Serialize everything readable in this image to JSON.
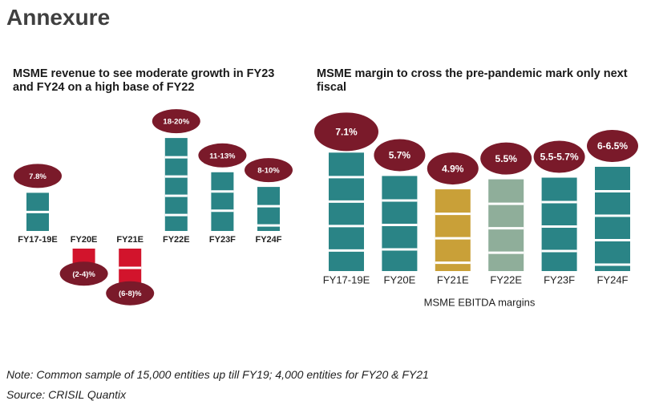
{
  "title": "Annexure",
  "chart_data": [
    {
      "type": "bar",
      "title": "MSME revenue to see moderate growth in FY23 and FY24 on a high base of FY22",
      "categories": [
        "FY17-19E",
        "FY20E",
        "FY21E",
        "FY22E",
        "FY23F",
        "FY24F"
      ],
      "values": [
        7.8,
        -3,
        -7,
        19,
        12,
        9
      ],
      "value_labels": [
        "7.8%",
        "(2-4)%",
        "(6-8)%",
        "18-20%",
        "11-13%",
        "8-10%"
      ],
      "colors": [
        "#2a8486",
        "#d2142c",
        "#d2142c",
        "#2a8486",
        "#2a8486",
        "#2a8486"
      ],
      "label_color": "#7a1a2a"
    },
    {
      "type": "bar",
      "title": "MSME margin to cross the pre-pandemic mark only next fiscal",
      "categories": [
        "FY17-19E",
        "FY20E",
        "FY21E",
        "FY22E",
        "FY23F",
        "FY24F"
      ],
      "values": [
        7.1,
        5.7,
        4.9,
        5.5,
        5.6,
        6.25
      ],
      "value_labels": [
        "7.1%",
        "5.7%",
        "4.9%",
        "5.5%",
        "5.5-5.7%",
        "6-6.5%"
      ],
      "colors": [
        "#2a8486",
        "#2a8486",
        "#c9a038",
        "#8fae9a",
        "#2a8486",
        "#2a8486"
      ],
      "label_color": "#7a1a2a",
      "x_label": "MSME EBITDA margins"
    }
  ],
  "note": "Note: Common sample of 15,000 entities up till FY19; 4,000 entities for FY20 & FY21",
  "source": "Source: CRISIL Quantix"
}
